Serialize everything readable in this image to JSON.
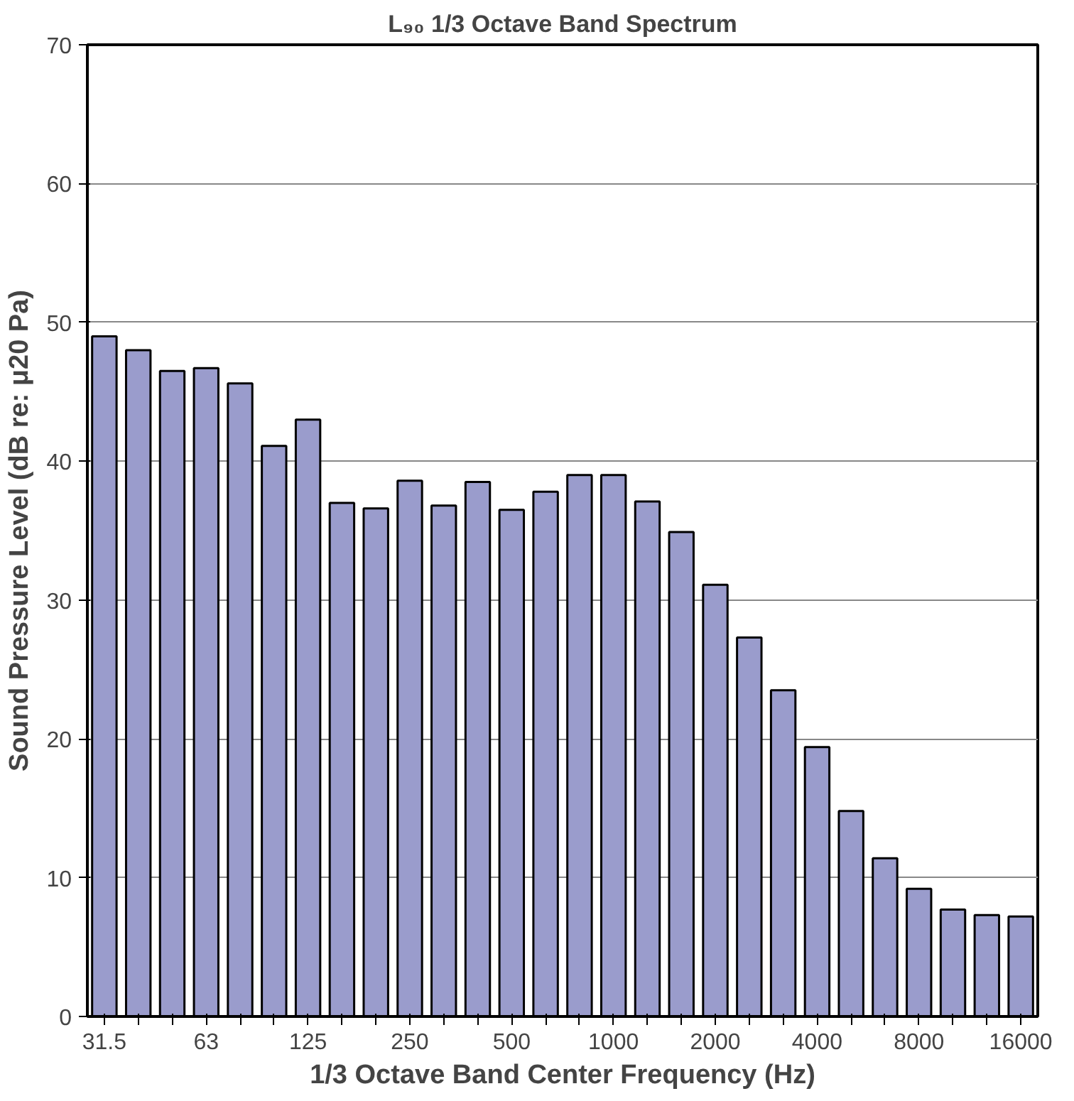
{
  "chart_data": {
    "type": "bar",
    "title": "L₉₀ 1/3 Octave Band Spectrum",
    "xlabel": "1/3 Octave Band Center Frequency (Hz)",
    "ylabel": "Sound Pressure Level (dB re: μ20 Pa)",
    "categories": [
      "31.5",
      null,
      null,
      "63",
      null,
      null,
      "125",
      null,
      null,
      "250",
      null,
      null,
      "500",
      null,
      null,
      "1000",
      null,
      null,
      "2000",
      null,
      null,
      "4000",
      null,
      null,
      "8000",
      null,
      null,
      "16000"
    ],
    "values": [
      49.0,
      48.0,
      46.5,
      46.7,
      45.6,
      41.1,
      43.0,
      37.0,
      36.6,
      38.6,
      36.8,
      38.5,
      36.5,
      37.8,
      39.0,
      39.0,
      37.1,
      34.9,
      31.1,
      27.3,
      23.5,
      19.4,
      14.8,
      11.4,
      9.2,
      7.7,
      7.3,
      7.2
    ],
    "color": "#9a9ccc",
    "ylim": [
      0,
      70
    ],
    "yticks": [
      0,
      10,
      20,
      30,
      40,
      50,
      60,
      70
    ],
    "grid": "y"
  }
}
